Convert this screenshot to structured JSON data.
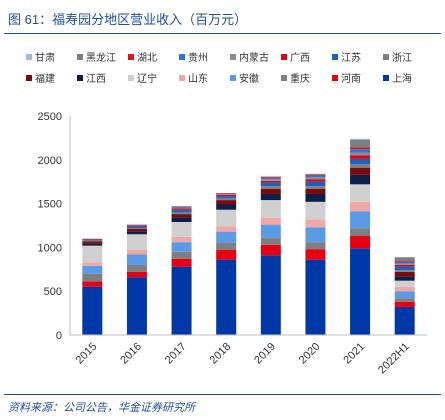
{
  "source": "资料来源：公司公告，华金证券研究所",
  "chart_data": {
    "type": "bar",
    "stacked": true,
    "title": "图 61：福寿园分地区营业收入（百万元）",
    "xlabel": "",
    "ylabel": "",
    "categories": [
      "2015",
      "2016",
      "2017",
      "2018",
      "2019",
      "2020",
      "2021",
      "2022H1"
    ],
    "ylim": [
      0,
      2500
    ],
    "yticks": [
      0,
      500,
      1000,
      1500,
      2000,
      2500
    ],
    "grid": false,
    "legend_position": "top",
    "series": [
      {
        "name": "甘肃",
        "color": "#9BBBE0",
        "values": [
          0,
          0,
          0,
          0,
          0,
          0,
          10,
          5
        ]
      },
      {
        "name": "黑龙江",
        "color": "#7F7F7F",
        "values": [
          0,
          0,
          0,
          0,
          5,
          10,
          90,
          40
        ]
      },
      {
        "name": "湖北",
        "color": "#D7191C",
        "values": [
          0,
          0,
          5,
          5,
          10,
          10,
          20,
          10
        ]
      },
      {
        "name": "贵州",
        "color": "#2E75D6",
        "values": [
          0,
          5,
          10,
          5,
          15,
          20,
          40,
          20
        ]
      },
      {
        "name": "内蒙古",
        "color": "#8C8C8C",
        "values": [
          5,
          5,
          10,
          10,
          20,
          25,
          30,
          15
        ]
      },
      {
        "name": "广西",
        "color": "#E60012",
        "values": [
          5,
          10,
          15,
          15,
          20,
          25,
          40,
          20
        ]
      },
      {
        "name": "江苏",
        "color": "#1565C0",
        "values": [
          10,
          20,
          30,
          25,
          40,
          50,
          60,
          40
        ]
      },
      {
        "name": "浙江",
        "color": "#808080",
        "values": [
          10,
          10,
          20,
          20,
          30,
          30,
          40,
          20
        ]
      },
      {
        "name": "福建",
        "color": "#7B0A0A",
        "values": [
          30,
          30,
          40,
          50,
          60,
          60,
          80,
          50
        ]
      },
      {
        "name": "江西",
        "color": "#0B1F4B",
        "values": [
          20,
          30,
          50,
          60,
          70,
          90,
          110,
          50
        ]
      },
      {
        "name": "辽宁",
        "color": "#D0D0D0",
        "values": [
          190,
          180,
          170,
          190,
          200,
          200,
          200,
          70
        ]
      },
      {
        "name": "山东",
        "color": "#F2A7A7",
        "values": [
          40,
          50,
          60,
          60,
          80,
          90,
          110,
          50
        ]
      },
      {
        "name": "安徽",
        "color": "#5B9BE6",
        "values": [
          90,
          120,
          110,
          130,
          150,
          170,
          190,
          80
        ]
      },
      {
        "name": "重庆",
        "color": "#7F7F7F",
        "values": [
          90,
          80,
          80,
          80,
          80,
          80,
          90,
          40
        ]
      },
      {
        "name": "河南",
        "color": "#E60012",
        "values": [
          60,
          60,
          90,
          110,
          120,
          120,
          140,
          60
        ]
      },
      {
        "name": "上海",
        "color": "#0038A8",
        "values": [
          550,
          660,
          780,
          860,
          910,
          860,
          990,
          320
        ]
      }
    ]
  }
}
